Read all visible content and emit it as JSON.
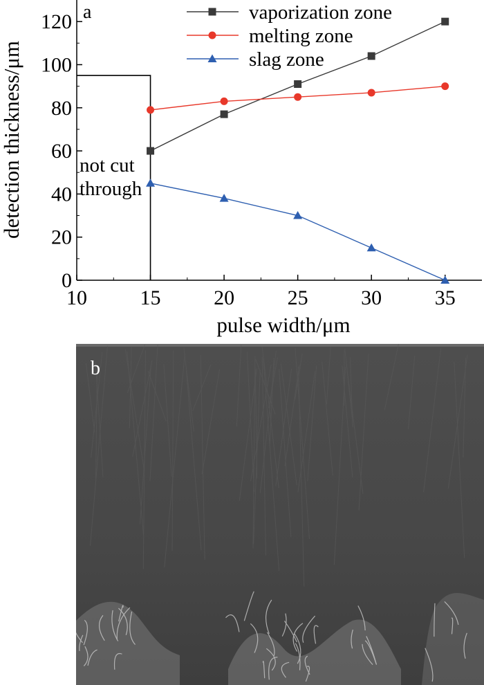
{
  "chart_data": {
    "type": "line",
    "panel_label": "a",
    "xlabel": "pulse width/μm",
    "ylabel": "detection thickness/μm",
    "xlim": [
      10,
      37.5
    ],
    "ylim": [
      0,
      130
    ],
    "xticks": [
      10,
      15,
      20,
      25,
      30,
      35
    ],
    "yticks": [
      0,
      20,
      40,
      60,
      80,
      100,
      120
    ],
    "legend_position": "top-right",
    "x": [
      15,
      20,
      25,
      30,
      35
    ],
    "series": [
      {
        "name": "vaporization zone",
        "color": "#3a3a3a",
        "marker": "square",
        "values": [
          60,
          77,
          91,
          104,
          120
        ]
      },
      {
        "name": "melting zone",
        "color": "#e8382a",
        "marker": "circle",
        "values": [
          79,
          83,
          85,
          87,
          90
        ]
      },
      {
        "name": "slag zone",
        "color": "#2e5fb0",
        "marker": "triangle",
        "values": [
          45,
          38,
          30,
          15,
          0
        ]
      }
    ],
    "annotation": {
      "lines": [
        "not cut",
        "through"
      ],
      "region_x": [
        10,
        15
      ],
      "region_top_y": 95
    }
  },
  "micrograph": {
    "panel_label": "b",
    "description_icon": "sem-micrograph-image"
  }
}
